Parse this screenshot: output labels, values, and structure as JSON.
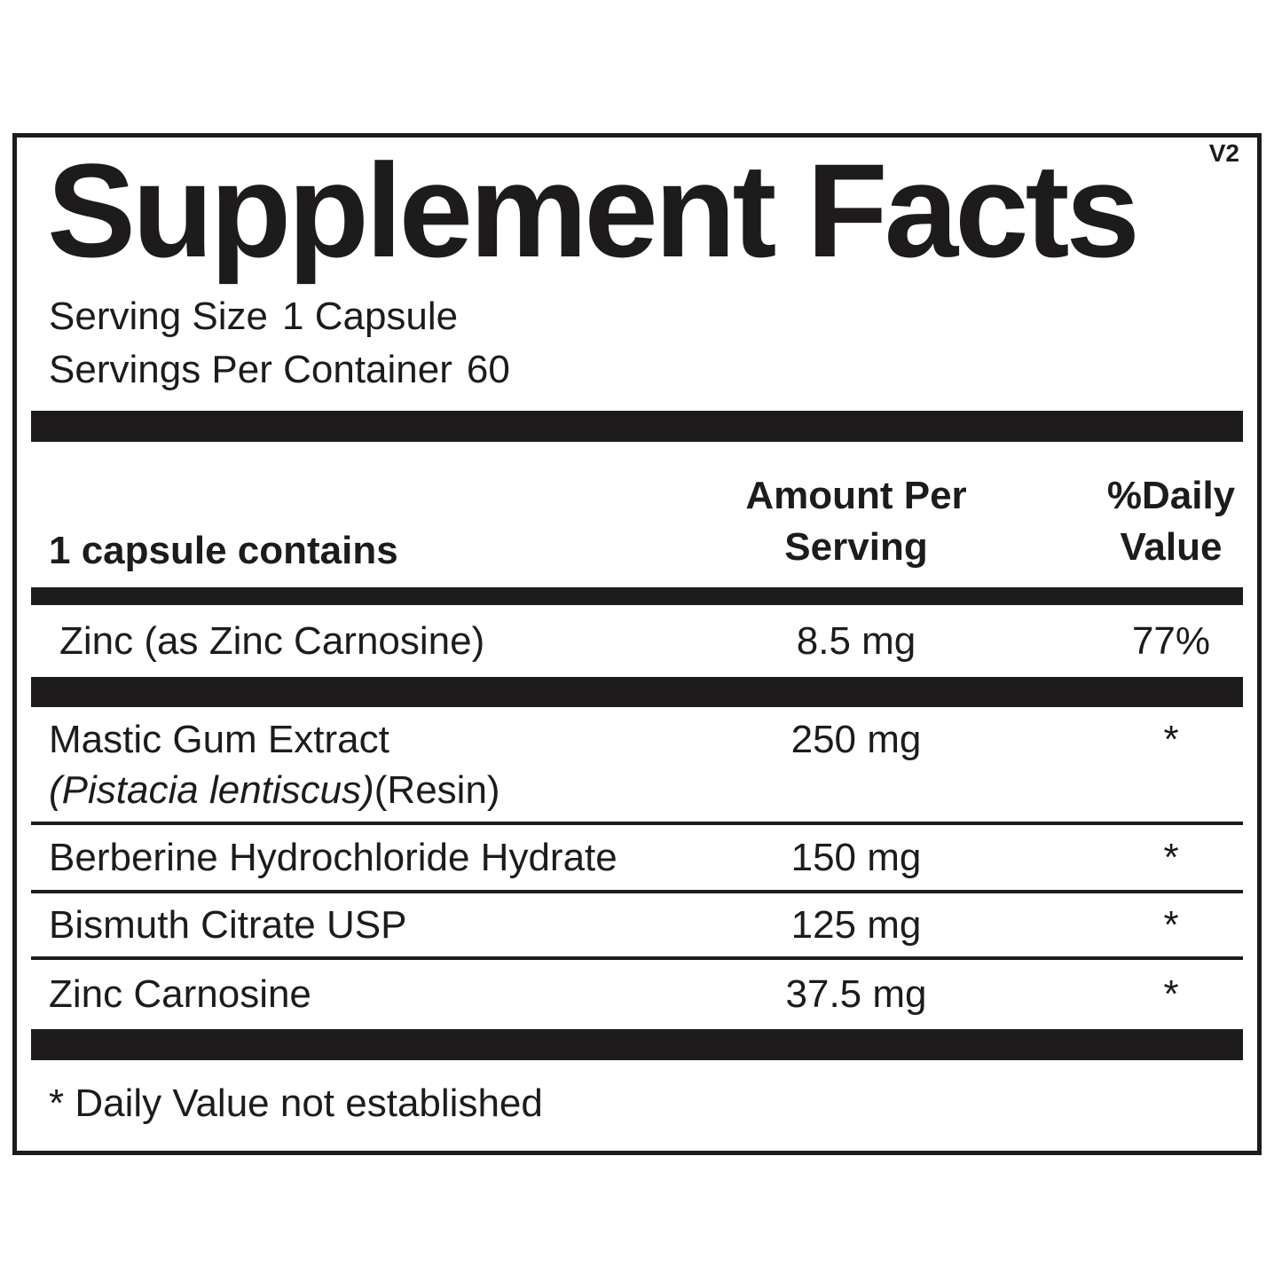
{
  "version_tag": "V2",
  "title": "Supplement Facts",
  "serving_info": {
    "serving_size_label": "Serving Size",
    "serving_size_value": "1 Capsule",
    "servings_per_container_label": "Servings Per Container",
    "servings_per_container_value": "60"
  },
  "table": {
    "header": {
      "col_ingredient": "1 capsule contains",
      "col_amount_line1": "Amount Per",
      "col_amount_line2": "Serving",
      "col_dv_line1": "%Daily",
      "col_dv_line2": "Value"
    },
    "rows": [
      {
        "name": "Zinc (as Zinc Carnosine)",
        "amount": "8.5 mg",
        "daily_value": "77%"
      },
      {
        "name": "Mastic Gum Extract",
        "name_detail_italic": "(Pistacia lentiscus)",
        "name_detail_suffix": "(Resin)",
        "amount": "250 mg",
        "daily_value": "*"
      },
      {
        "name": "Berberine Hydrochloride Hydrate",
        "amount": "150 mg",
        "daily_value": "*"
      },
      {
        "name": "Bismuth Citrate USP",
        "amount": "125 mg",
        "daily_value": "*"
      },
      {
        "name": "Zinc Carnosine",
        "amount": "37.5 mg",
        "daily_value": "*"
      }
    ]
  },
  "footnote": "* Daily Value not established",
  "colors": {
    "ink": "#1e1b1c",
    "background": "#ffffff"
  }
}
